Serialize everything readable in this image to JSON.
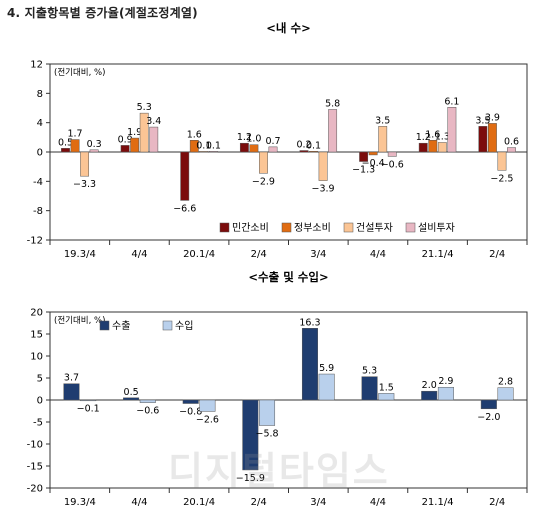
{
  "heading": "4. 지출항목별 증가율(계절조정계열)",
  "watermark": "디지털타임스",
  "chart_data": [
    {
      "type": "bar",
      "title": "<내 수>",
      "unit_label": "(전기대비, %)",
      "categories": [
        "19.3/4",
        "4/4",
        "20.1/4",
        "2/4",
        "3/4",
        "4/4",
        "21.1/4",
        "2/4"
      ],
      "ylim": [
        -12,
        12
      ],
      "yticks": [
        -12,
        -8,
        -4,
        0,
        4,
        8,
        12
      ],
      "legend_position": "bottom-right",
      "series": [
        {
          "name": "민간소비",
          "color": "#7b0c0c",
          "values": [
            0.5,
            0.9,
            -6.6,
            1.2,
            0.2,
            -1.3,
            1.2,
            3.5
          ]
        },
        {
          "name": "정부소비",
          "color": "#e06c12",
          "values": [
            1.7,
            1.9,
            1.6,
            1.0,
            0.1,
            -0.4,
            1.6,
            3.9
          ]
        },
        {
          "name": "건설투자",
          "color": "#fbc595",
          "values": [
            -3.3,
            5.3,
            0.1,
            -2.9,
            -3.9,
            3.5,
            1.3,
            -2.5
          ]
        },
        {
          "name": "설비투자",
          "color": "#e8b7c3",
          "values": [
            0.3,
            3.4,
            0.1,
            0.7,
            5.8,
            -0.6,
            6.1,
            0.6
          ]
        }
      ]
    },
    {
      "type": "bar",
      "title": "<수출 및 수입>",
      "unit_label": "(전기대비, %)",
      "categories": [
        "19.3/4",
        "4/4",
        "20.1/4",
        "2/4",
        "3/4",
        "4/4",
        "21.1/4",
        "2/4"
      ],
      "ylim": [
        -20,
        20
      ],
      "yticks": [
        -20,
        -15,
        -10,
        -5,
        0,
        5,
        10,
        15,
        20
      ],
      "legend_position": "top-left",
      "series": [
        {
          "name": "수출",
          "color": "#1f3d70",
          "values": [
            3.7,
            0.5,
            -0.8,
            -15.9,
            16.3,
            5.3,
            2.0,
            -2.0
          ]
        },
        {
          "name": "수입",
          "color": "#b9d0ec",
          "values": [
            -0.1,
            -0.6,
            -2.6,
            -5.8,
            5.9,
            1.5,
            2.9,
            2.8
          ]
        }
      ]
    }
  ]
}
